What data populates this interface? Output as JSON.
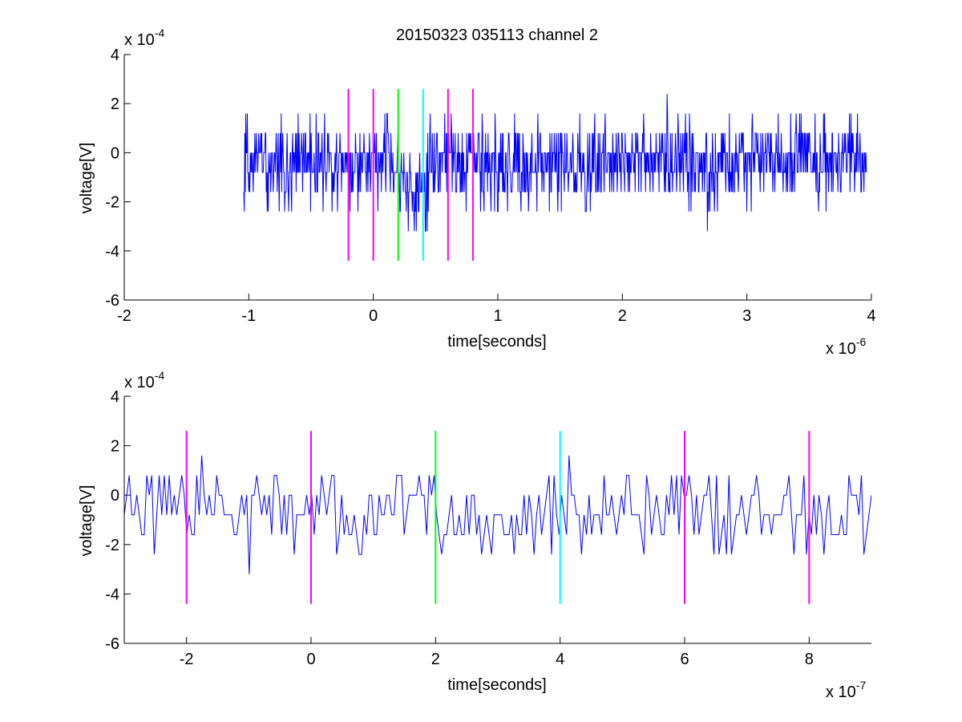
{
  "chart_data": [
    {
      "type": "line",
      "title": "20150323 035113 channel 2",
      "xlabel": "time[seconds]",
      "ylabel": "voltage[V]",
      "x_multiplier": {
        "base": "x 10",
        "exponent": "-6"
      },
      "y_multiplier": {
        "base": "x 10",
        "exponent": "-4"
      },
      "xlim": [
        -2,
        4
      ],
      "ylim": [
        -6,
        4
      ],
      "xticks": [
        -2,
        -1,
        0,
        1,
        2,
        3,
        4
      ],
      "xtick_labels": [
        "-2",
        "-1",
        "0",
        "1",
        "2",
        "3",
        "4"
      ],
      "yticks": [
        -6,
        -4,
        -2,
        0,
        2,
        4
      ],
      "ytick_labels": [
        "-6",
        "-4",
        "-2",
        "0",
        "2",
        "4"
      ],
      "grid": false,
      "signal": {
        "color": "#0000ff",
        "x_range": [
          -1.04,
          3.96
        ],
        "samples": 1250,
        "levels": [
          -3.2,
          -2.4,
          -1.6,
          -0.8,
          0,
          0.8,
          1.6,
          2.4
        ],
        "mean": -0.4,
        "dip_region": [
          0.2,
          0.45
        ],
        "dip_mean": -1.4
      },
      "markers": [
        {
          "x": -0.2,
          "y_range": [
            -4.4,
            2.6
          ],
          "color": "#ff00ff"
        },
        {
          "x": 0.0,
          "y_range": [
            -4.4,
            2.6
          ],
          "color": "#ff00ff"
        },
        {
          "x": 0.2,
          "y_range": [
            -4.4,
            2.6
          ],
          "color": "#00ff00"
        },
        {
          "x": 0.4,
          "y_range": [
            -4.4,
            2.6
          ],
          "color": "#00ffff"
        },
        {
          "x": 0.6,
          "y_range": [
            -4.4,
            2.6
          ],
          "color": "#ff00ff"
        },
        {
          "x": 0.8,
          "y_range": [
            -4.4,
            2.6
          ],
          "color": "#ff00ff"
        }
      ]
    },
    {
      "type": "line",
      "title": "",
      "xlabel": "time[seconds]",
      "ylabel": "voltage[V]",
      "x_multiplier": {
        "base": "x 10",
        "exponent": "-7"
      },
      "y_multiplier": {
        "base": "x 10",
        "exponent": "-4"
      },
      "xlim": [
        -3,
        9
      ],
      "ylim": [
        -6,
        4
      ],
      "xticks": [
        -2,
        0,
        2,
        4,
        6,
        8
      ],
      "xtick_labels": [
        "-2",
        "0",
        "2",
        "4",
        "6",
        "8"
      ],
      "yticks": [
        -6,
        -4,
        -2,
        0,
        2,
        4
      ],
      "ytick_labels": [
        "-6",
        "-4",
        "-2",
        "0",
        "2",
        "4"
      ],
      "grid": false,
      "signal": {
        "color": "#0000ff",
        "x_range": [
          -3,
          9
        ],
        "samples": 300,
        "levels": [
          -4.0,
          -3.2,
          -2.4,
          -1.6,
          -0.8,
          0,
          0.8,
          1.6
        ],
        "mean": -0.6,
        "dip_region": [
          2,
          3.5
        ],
        "dip_mean": -1.4
      },
      "markers": [
        {
          "x": -2,
          "y_range": [
            -4.4,
            2.6
          ],
          "color": "#ff00ff"
        },
        {
          "x": 0,
          "y_range": [
            -4.4,
            2.6
          ],
          "color": "#ff00ff"
        },
        {
          "x": 2,
          "y_range": [
            -4.4,
            2.6
          ],
          "color": "#00ff00"
        },
        {
          "x": 4,
          "y_range": [
            -4.4,
            2.6
          ],
          "color": "#00ffff"
        },
        {
          "x": 6,
          "y_range": [
            -4.4,
            2.6
          ],
          "color": "#ff00ff"
        },
        {
          "x": 8,
          "y_range": [
            -4.4,
            2.6
          ],
          "color": "#ff00ff"
        }
      ]
    }
  ]
}
